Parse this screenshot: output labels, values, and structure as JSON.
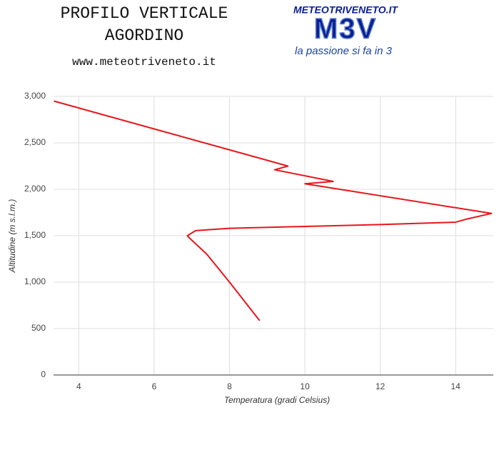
{
  "title": [
    "PROFILO VERTICALE",
    "AGORDINO"
  ],
  "website": "www.meteotriveneto.it",
  "logo": {
    "site": "METEOTRIVENETO.IT",
    "mark": "M3V",
    "tagline": "la passione si fa in 3"
  },
  "chart_data": {
    "type": "line",
    "x_label": "Temperatura (gradi Celsius)",
    "y_label": "Altitudine (m s.l.m.)",
    "x": [
      8.8,
      8.0,
      7.4,
      6.95,
      6.88,
      7.1,
      8.0,
      10,
      12,
      14,
      14.3,
      14.95,
      10,
      10.75,
      9.2,
      9.55,
      3.34
    ],
    "series": [
      {
        "color": "#e8161b",
        "values": [
          585,
          1000,
          1300,
          1470,
          1500,
          1555,
          1580,
          1600,
          1620,
          1645,
          1680,
          1740,
          2060,
          2085,
          2210,
          2250,
          2950
        ]
      }
    ],
    "xlim": [
      3.33,
      15
    ],
    "xticks": [
      4,
      6,
      8,
      10,
      12,
      14
    ],
    "ylim": [
      0,
      3000
    ],
    "yticks": [
      0,
      500,
      {
        "value": 1000,
        "label": "1,000"
      },
      {
        "value": 1500,
        "label": "1,500"
      },
      {
        "value": 2000,
        "label": "2,000"
      },
      {
        "value": 2500,
        "label": "2,500"
      },
      {
        "value": 3000,
        "label": "3,000"
      }
    ],
    "grid": true
  }
}
